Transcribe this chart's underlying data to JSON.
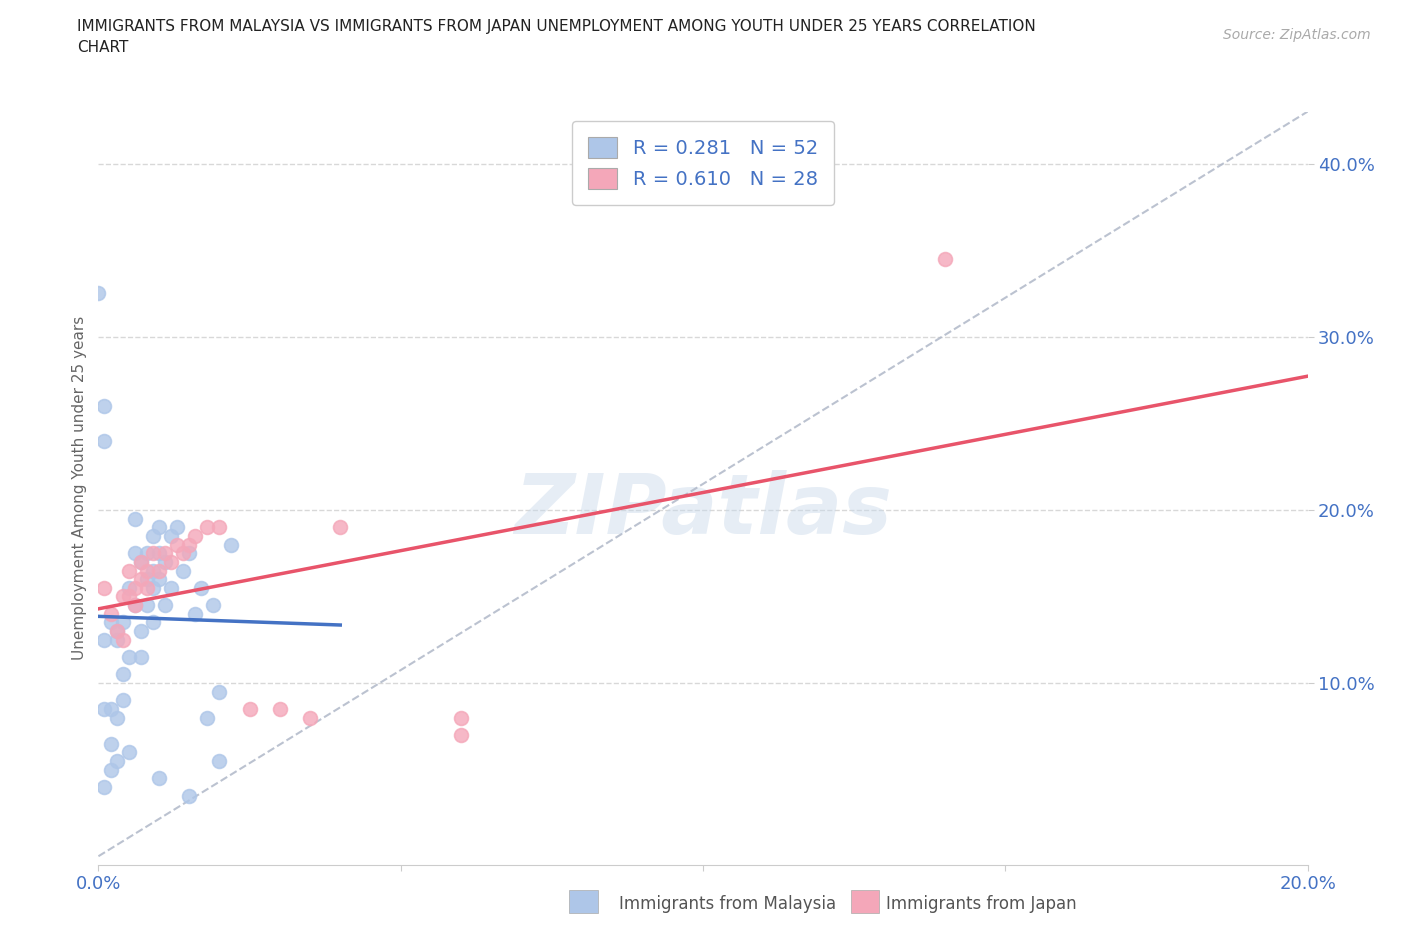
{
  "title_line1": "IMMIGRANTS FROM MALAYSIA VS IMMIGRANTS FROM JAPAN UNEMPLOYMENT AMONG YOUTH UNDER 25 YEARS CORRELATION",
  "title_line2": "CHART",
  "source": "Source: ZipAtlas.com",
  "ylabel_label": "Unemployment Among Youth under 25 years",
  "watermark": "ZIPatlas",
  "xlim": [
    0.0,
    0.2
  ],
  "ylim": [
    -0.005,
    0.43
  ],
  "ytick_vals": [
    0.1,
    0.2,
    0.3,
    0.4
  ],
  "ytick_labels": [
    "10.0%",
    "20.0%",
    "30.0%",
    "40.0%"
  ],
  "xtick_vals": [
    0.0,
    0.05,
    0.1,
    0.15,
    0.2
  ],
  "xtick_labels": [
    "0.0%",
    "",
    "",
    "",
    "20.0%"
  ],
  "malaysia_scatter": [
    [
      0.0,
      0.325
    ],
    [
      0.001,
      0.26
    ],
    [
      0.001,
      0.24
    ],
    [
      0.001,
      0.125
    ],
    [
      0.001,
      0.085
    ],
    [
      0.002,
      0.135
    ],
    [
      0.002,
      0.085
    ],
    [
      0.002,
      0.065
    ],
    [
      0.003,
      0.13
    ],
    [
      0.003,
      0.125
    ],
    [
      0.003,
      0.08
    ],
    [
      0.003,
      0.055
    ],
    [
      0.004,
      0.135
    ],
    [
      0.004,
      0.105
    ],
    [
      0.004,
      0.09
    ],
    [
      0.005,
      0.155
    ],
    [
      0.005,
      0.115
    ],
    [
      0.006,
      0.195
    ],
    [
      0.006,
      0.175
    ],
    [
      0.006,
      0.145
    ],
    [
      0.007,
      0.17
    ],
    [
      0.007,
      0.13
    ],
    [
      0.007,
      0.115
    ],
    [
      0.008,
      0.175
    ],
    [
      0.008,
      0.16
    ],
    [
      0.008,
      0.145
    ],
    [
      0.009,
      0.185
    ],
    [
      0.009,
      0.165
    ],
    [
      0.009,
      0.155
    ],
    [
      0.009,
      0.135
    ],
    [
      0.01,
      0.19
    ],
    [
      0.01,
      0.175
    ],
    [
      0.01,
      0.16
    ],
    [
      0.011,
      0.17
    ],
    [
      0.011,
      0.145
    ],
    [
      0.012,
      0.185
    ],
    [
      0.012,
      0.155
    ],
    [
      0.013,
      0.19
    ],
    [
      0.014,
      0.165
    ],
    [
      0.015,
      0.175
    ],
    [
      0.016,
      0.14
    ],
    [
      0.017,
      0.155
    ],
    [
      0.018,
      0.08
    ],
    [
      0.019,
      0.145
    ],
    [
      0.02,
      0.095
    ],
    [
      0.022,
      0.18
    ],
    [
      0.001,
      0.04
    ],
    [
      0.002,
      0.05
    ],
    [
      0.005,
      0.06
    ],
    [
      0.01,
      0.045
    ],
    [
      0.015,
      0.035
    ],
    [
      0.02,
      0.055
    ]
  ],
  "japan_scatter": [
    [
      0.001,
      0.155
    ],
    [
      0.002,
      0.14
    ],
    [
      0.003,
      0.13
    ],
    [
      0.004,
      0.15
    ],
    [
      0.004,
      0.125
    ],
    [
      0.005,
      0.165
    ],
    [
      0.005,
      0.15
    ],
    [
      0.006,
      0.155
    ],
    [
      0.006,
      0.145
    ],
    [
      0.007,
      0.17
    ],
    [
      0.007,
      0.16
    ],
    [
      0.008,
      0.165
    ],
    [
      0.008,
      0.155
    ],
    [
      0.009,
      0.175
    ],
    [
      0.01,
      0.165
    ],
    [
      0.011,
      0.175
    ],
    [
      0.012,
      0.17
    ],
    [
      0.013,
      0.18
    ],
    [
      0.014,
      0.175
    ],
    [
      0.015,
      0.18
    ],
    [
      0.016,
      0.185
    ],
    [
      0.018,
      0.19
    ],
    [
      0.02,
      0.19
    ],
    [
      0.025,
      0.085
    ],
    [
      0.03,
      0.085
    ],
    [
      0.035,
      0.08
    ],
    [
      0.04,
      0.19
    ],
    [
      0.06,
      0.08
    ],
    [
      0.06,
      0.07
    ],
    [
      0.14,
      0.345
    ]
  ],
  "malaysia_color": "#aec6e8",
  "japan_color": "#f4a7b9",
  "malaysia_line_color": "#4472c4",
  "japan_line_color": "#e8546a",
  "diagonal_color": "#b0b8c8",
  "background_color": "#ffffff",
  "grid_color": "#e0e0e0",
  "title_color": "#222222",
  "axis_label_color": "#4472c4"
}
